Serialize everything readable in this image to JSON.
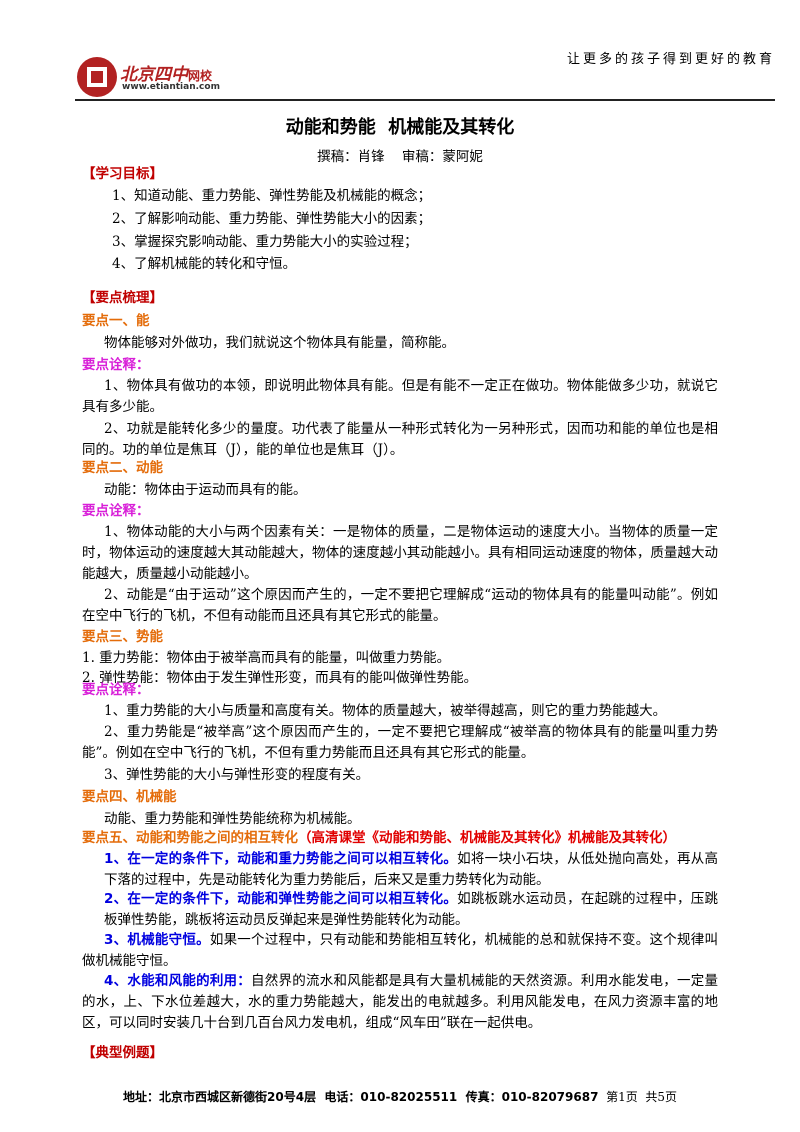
{
  "header": {
    "logo_title": "北京四中",
    "logo_suffix": "网校",
    "logo_url": "www.etiantian.com",
    "slogan": "让更多的孩子得到更好的教育"
  },
  "title": "动能和势能  机械能及其转化",
  "authors": "撰稿：肖锋    审稿：蒙阿妮",
  "goals": {
    "heading": "【学习目标】",
    "items": [
      "1、知道动能、重力势能、弹性势能及机械能的概念；",
      "2、了解影响动能、重力势能、弹性势能大小的因素；",
      "3、掌握探究影响动能、重力势能大小的实验过程；",
      "4、了解机械能的转化和守恒。"
    ]
  },
  "summary": {
    "heading": "【要点梳理】",
    "point1": {
      "heading": "要点一、能",
      "text": "物体能够对外做功，我们就说这个物体具有能量，简称能。",
      "note_heading": "要点诠释：",
      "notes": [
        "1、物体具有做功的本领，即说明此物体具有能。但是有能不一定正在做功。物体能做多少功，就说它具有多少能。",
        "2、功就是能转化多少的量度。功代表了能量从一种形式转化为一另种形式，因而功和能的单位也是相同的。功的单位是焦耳（J），能的单位也是焦耳（J）。"
      ]
    },
    "point2": {
      "heading": "要点二、动能",
      "text": "动能：物体由于运动而具有的能。",
      "note_heading": "要点诠释：",
      "notes": [
        "1、物体动能的大小与两个因素有关：一是物体的质量，二是物体运动的速度大小。当物体的质量一定时，物体运动的速度越大其动能越大，物体的速度越小其动能越小。具有相同运动速度的物体，质量越大动能越大，质量越小动能越小。",
        "2、动能是“由于运动”这个原因而产生的，一定不要把它理解成“运动的物体具有的能量叫动能”。例如在空中飞行的飞机，不但有动能而且还具有其它形式的能量。"
      ]
    },
    "point3": {
      "heading": "要点三、势能",
      "items": [
        "1.   重力势能：物体由于被举高而具有的能量，叫做重力势能。",
        "2.   弹性势能：物体由于发生弹性形变，而具有的能叫做弹性势能。"
      ],
      "note_heading": "要点诠释：",
      "notes": [
        "1、重力势能的大小与质量和高度有关。物体的质量越大，被举得越高，则它的重力势能越大。",
        "2、重力势能是“被举高”这个原因而产生的，一定不要把它理解成“被举高的物体具有的能量叫重力势能”。例如在空中飞行的飞机，不但有重力势能而且还具有其它形式的能量。",
        "3、弹性势能的大小与弹性形变的程度有关。"
      ]
    },
    "point4": {
      "heading": "要点四、机械能",
      "text": "动能、重力势能和弹性势能统称为机械能。"
    },
    "point5": {
      "heading": "要点五、动能和势能之间的相互转化",
      "source": "（高清课堂《动能和势能、机械能及其转化》机械能及其转化）",
      "items": [
        {
          "lead": "1、在一定的条件下，动能和重力势能之间可以相互转化。",
          "text": "如将一块小石块，从低处抛向高处，再从高下落的过程中，先是动能转化为重力势能后，后来又是重力势转化为动能。"
        },
        {
          "lead": "2、在一定的条件下，动能和弹性势能之间可以相互转化。",
          "text": "如跳板跳水运动员，在起跳的过程中，压跳板弹性势能，跳板将运动员反弹起来是弹性势能转化为动能。"
        },
        {
          "lead": "3、机械能守恒。",
          "text": "如果一个过程中，只有动能和势能相互转化，机械能的总和就保持不变。这个规律叫做机械能守恒。"
        },
        {
          "lead": "4、水能和风能的利用：",
          "text": "自然界的流水和风能都是具有大量机械能的天然资源。利用水能发电，一定量的水，上、下水位差越大，水的重力势能越大，能发出的电就越多。利用风能发电，在风力资源丰富的地区，可以同时安装几十台到几百台风力发电机，组成“风车田”联在一起供电。"
        }
      ]
    }
  },
  "examples": {
    "heading": "【典型例题】"
  },
  "footer": {
    "address": "地址：北京市西城区新德街20号4层  电话：010-82025511  传真：010-82079687",
    "page": "第1页  共5页"
  }
}
